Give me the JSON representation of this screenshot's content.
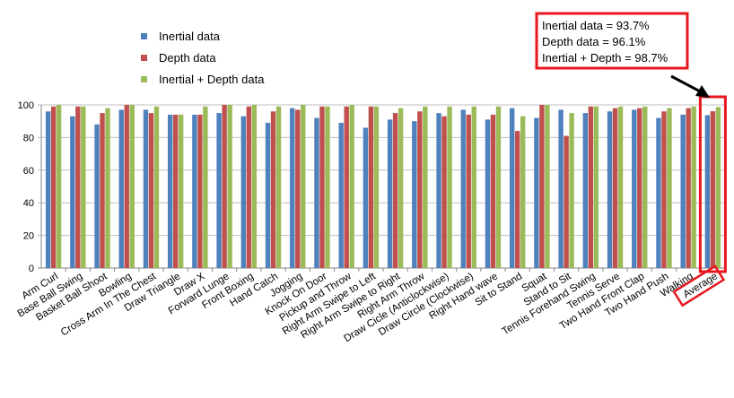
{
  "chart_data": {
    "type": "bar",
    "title": "",
    "xlabel": "",
    "ylabel": "",
    "ylim": [
      0,
      100
    ],
    "yticks": [
      0,
      20,
      40,
      60,
      80,
      100
    ],
    "grid": true,
    "legend_placement": "top-left",
    "categories": [
      "Arm Curl",
      "Base Ball Swing",
      "Basket Ball Shoot",
      "Bowling",
      "Cross Arm In The Chest",
      "Draw Triangle",
      "Draw X",
      "Forward Lunge",
      "Front Boxing",
      "Hand Catch",
      "Jogging",
      "Knock On Door",
      "Pickup and Throw",
      "Right Arm Swipe to Left",
      "Right Arm Swipe to Right",
      "Right Arm Throw",
      "Draw Cicle (Anticlockwise)",
      "Draw Circle (Clockwise)",
      "Right Hand wave",
      "Sit to Stand",
      "Squat",
      "Stand to Sit",
      "Tennis Forehand Swing",
      "Tennis Serve",
      "Two Hand Front Clap",
      "Two Hand Push",
      "Walking",
      "Average"
    ],
    "series": [
      {
        "name": "Inertial data",
        "color": "#4F81BD",
        "values": [
          96,
          93,
          88,
          97,
          97,
          94,
          94,
          95,
          93,
          89,
          98,
          92,
          89,
          86,
          91,
          90,
          95,
          97,
          91,
          98,
          92,
          97,
          95,
          96,
          97,
          92,
          94,
          93.7
        ]
      },
      {
        "name": "Depth data",
        "color": "#C0504D",
        "values": [
          99,
          99,
          95,
          100,
          95,
          94,
          94,
          100,
          99,
          96,
          97,
          99,
          99,
          99,
          95,
          96,
          93,
          94,
          94,
          84,
          100,
          81,
          99,
          98,
          98,
          96,
          98,
          96.1
        ]
      },
      {
        "name": "Inertial + Depth data",
        "color": "#9BBB59",
        "values": [
          100,
          99,
          98,
          100,
          99,
          94,
          99,
          100,
          100,
          99,
          100,
          99,
          100,
          99,
          98,
          99,
          99,
          99,
          99,
          93,
          100,
          95,
          99,
          99,
          99,
          98,
          99,
          98.7
        ]
      }
    ],
    "annotation": {
      "lines": [
        "Inertial data = 93.7%",
        "Depth data = 96.1%",
        "Inertial + Depth = 98.7%"
      ],
      "highlight_color": "#E8171F",
      "target_category": "Average"
    }
  }
}
